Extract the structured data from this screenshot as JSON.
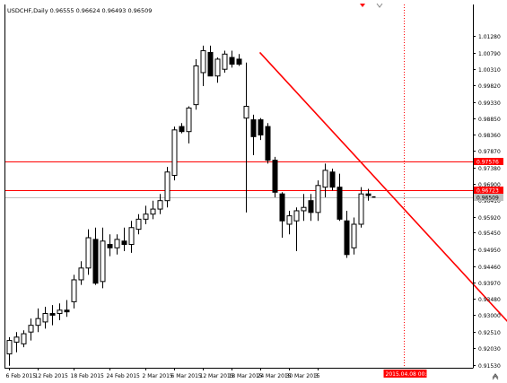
{
  "chart_data": {
    "type": "candlestick",
    "title": "USDCHF,Daily  0.96555 0.96624 0.96493 0.96509",
    "symbol": "USDCHF",
    "timeframe": "Daily",
    "ohlc_current": {
      "open": 0.96555,
      "high": 0.96624,
      "low": 0.96493,
      "close": 0.96509
    },
    "ylim": [
      0.9148,
      1.0173
    ],
    "y_ticks": [
      1.0128,
      1.0079,
      1.0031,
      0.9982,
      0.9933,
      0.9885,
      0.9836,
      0.9787,
      0.9738,
      0.969,
      0.9641,
      0.9592,
      0.9545,
      0.9495,
      0.9446,
      0.9397,
      0.9348,
      0.93,
      0.9251,
      0.9203,
      0.9153
    ],
    "y_tick_labels": [
      "1.01280",
      "1.00790",
      "1.00310",
      "0.99820",
      "0.99330",
      "0.98850",
      "0.98360",
      "0.97870",
      "0.97380",
      "0.96900",
      "0.96410",
      "0.95920",
      "0.95450",
      "0.94950",
      "0.94460",
      "0.93970",
      "0.93480",
      "0.93000",
      "0.92510",
      "0.92030",
      "0.91530"
    ],
    "x_tick_labels": [
      "6 Feb 2015",
      "12 Feb 2015",
      "18 Feb 2015",
      "24 Feb 2015",
      "2 Mar 2015",
      "6 Mar 2015",
      "12 Mar 2015",
      "18 Mar 2015",
      "24 Mar 2015",
      "30 Mar 2015",
      "3"
    ],
    "x_tick_bar_index": [
      0,
      4,
      9,
      14,
      19,
      23,
      27,
      31,
      35,
      39,
      43
    ],
    "bar_count": 58,
    "candles": [
      {
        "o": 0.9185,
        "h": 0.9235,
        "l": 0.915,
        "c": 0.9225
      },
      {
        "o": 0.922,
        "h": 0.925,
        "l": 0.919,
        "c": 0.9235
      },
      {
        "o": 0.9215,
        "h": 0.9255,
        "l": 0.9205,
        "c": 0.9245
      },
      {
        "o": 0.925,
        "h": 0.929,
        "l": 0.9225,
        "c": 0.927
      },
      {
        "o": 0.927,
        "h": 0.932,
        "l": 0.925,
        "c": 0.929
      },
      {
        "o": 0.928,
        "h": 0.9325,
        "l": 0.926,
        "c": 0.9305
      },
      {
        "o": 0.9305,
        "h": 0.933,
        "l": 0.927,
        "c": 0.93
      },
      {
        "o": 0.9305,
        "h": 0.9335,
        "l": 0.9285,
        "c": 0.9315
      },
      {
        "o": 0.9315,
        "h": 0.9345,
        "l": 0.9295,
        "c": 0.931
      },
      {
        "o": 0.934,
        "h": 0.942,
        "l": 0.932,
        "c": 0.9405
      },
      {
        "o": 0.9405,
        "h": 0.946,
        "l": 0.939,
        "c": 0.944
      },
      {
        "o": 0.944,
        "h": 0.9555,
        "l": 0.942,
        "c": 0.953
      },
      {
        "o": 0.9525,
        "h": 0.956,
        "l": 0.939,
        "c": 0.9395
      },
      {
        "o": 0.94,
        "h": 0.956,
        "l": 0.938,
        "c": 0.952
      },
      {
        "o": 0.951,
        "h": 0.954,
        "l": 0.9475,
        "c": 0.95
      },
      {
        "o": 0.95,
        "h": 0.954,
        "l": 0.948,
        "c": 0.9525
      },
      {
        "o": 0.952,
        "h": 0.956,
        "l": 0.949,
        "c": 0.951
      },
      {
        "o": 0.951,
        "h": 0.958,
        "l": 0.9485,
        "c": 0.956
      },
      {
        "o": 0.9555,
        "h": 0.96,
        "l": 0.954,
        "c": 0.9585
      },
      {
        "o": 0.9585,
        "h": 0.9625,
        "l": 0.957,
        "c": 0.96
      },
      {
        "o": 0.96,
        "h": 0.964,
        "l": 0.9585,
        "c": 0.9615
      },
      {
        "o": 0.9615,
        "h": 0.966,
        "l": 0.96,
        "c": 0.964
      },
      {
        "o": 0.964,
        "h": 0.974,
        "l": 0.962,
        "c": 0.9725
      },
      {
        "o": 0.9715,
        "h": 0.986,
        "l": 0.97,
        "c": 0.985
      },
      {
        "o": 0.986,
        "h": 0.987,
        "l": 0.984,
        "c": 0.9845
      },
      {
        "o": 0.9845,
        "h": 0.992,
        "l": 0.981,
        "c": 0.9915
      },
      {
        "o": 0.9925,
        "h": 1.006,
        "l": 0.991,
        "c": 1.004
      },
      {
        "o": 1.002,
        "h": 1.01,
        "l": 0.998,
        "c": 1.0085
      },
      {
        "o": 1.008,
        "h": 1.01,
        "l": 1.001,
        "c": 1.001
      },
      {
        "o": 1.001,
        "h": 1.0065,
        "l": 0.999,
        "c": 1.006
      },
      {
        "o": 1.003,
        "h": 1.0085,
        "l": 1.002,
        "c": 1.0075
      },
      {
        "o": 1.0065,
        "h": 1.0085,
        "l": 1.0035,
        "c": 1.0045
      },
      {
        "o": 1.006,
        "h": 1.0075,
        "l": 1.004,
        "c": 1.0045
      },
      {
        "o": 0.9885,
        "h": 1.005,
        "l": 0.9605,
        "c": 0.992
      },
      {
        "o": 0.988,
        "h": 0.9895,
        "l": 0.9775,
        "c": 0.983
      },
      {
        "o": 0.988,
        "h": 0.9885,
        "l": 0.982,
        "c": 0.9835
      },
      {
        "o": 0.986,
        "h": 0.987,
        "l": 0.975,
        "c": 0.976
      },
      {
        "o": 0.976,
        "h": 0.977,
        "l": 0.965,
        "c": 0.9665
      },
      {
        "o": 0.966,
        "h": 0.9665,
        "l": 0.953,
        "c": 0.958
      },
      {
        "o": 0.957,
        "h": 0.961,
        "l": 0.954,
        "c": 0.9595
      },
      {
        "o": 0.958,
        "h": 0.962,
        "l": 0.949,
        "c": 0.961
      },
      {
        "o": 0.961,
        "h": 0.966,
        "l": 0.958,
        "c": 0.962
      },
      {
        "o": 0.964,
        "h": 0.966,
        "l": 0.958,
        "c": 0.9605
      },
      {
        "o": 0.9605,
        "h": 0.97,
        "l": 0.958,
        "c": 0.9685
      },
      {
        "o": 0.968,
        "h": 0.975,
        "l": 0.965,
        "c": 0.973
      },
      {
        "o": 0.9725,
        "h": 0.9735,
        "l": 0.967,
        "c": 0.968
      },
      {
        "o": 0.968,
        "h": 0.972,
        "l": 0.958,
        "c": 0.9585
      },
      {
        "o": 0.958,
        "h": 0.961,
        "l": 0.947,
        "c": 0.948
      },
      {
        "o": 0.95,
        "h": 0.959,
        "l": 0.948,
        "c": 0.957
      },
      {
        "o": 0.957,
        "h": 0.968,
        "l": 0.956,
        "c": 0.966
      },
      {
        "o": 0.966,
        "h": 0.9675,
        "l": 0.964,
        "c": 0.9655
      }
    ],
    "horizontal_levels": [
      {
        "value": 0.97576,
        "label": "0.97576",
        "color": "#ff0000"
      },
      {
        "value": 0.96723,
        "label": "0.96723",
        "color": "#ff0000"
      },
      {
        "value": 0.96509,
        "label": "0.96509",
        "color": "#c0c0c0"
      }
    ],
    "trendline": {
      "color": "#ff0000",
      "from": {
        "bar": 35,
        "value": 1.008
      },
      "to": {
        "bar": 70,
        "value": 0.927
      }
    },
    "cursor": {
      "bar": 55,
      "label": "2015.04.08 00:00",
      "color": "#ff0000"
    },
    "colors": {
      "background": "#ffffff",
      "bull_body": "#ffffff",
      "bear_body": "#000000",
      "candle_outline": "#000000",
      "axis": "#000000",
      "label_red": "#ff0000",
      "label_gray": "#c0c0c0"
    }
  }
}
